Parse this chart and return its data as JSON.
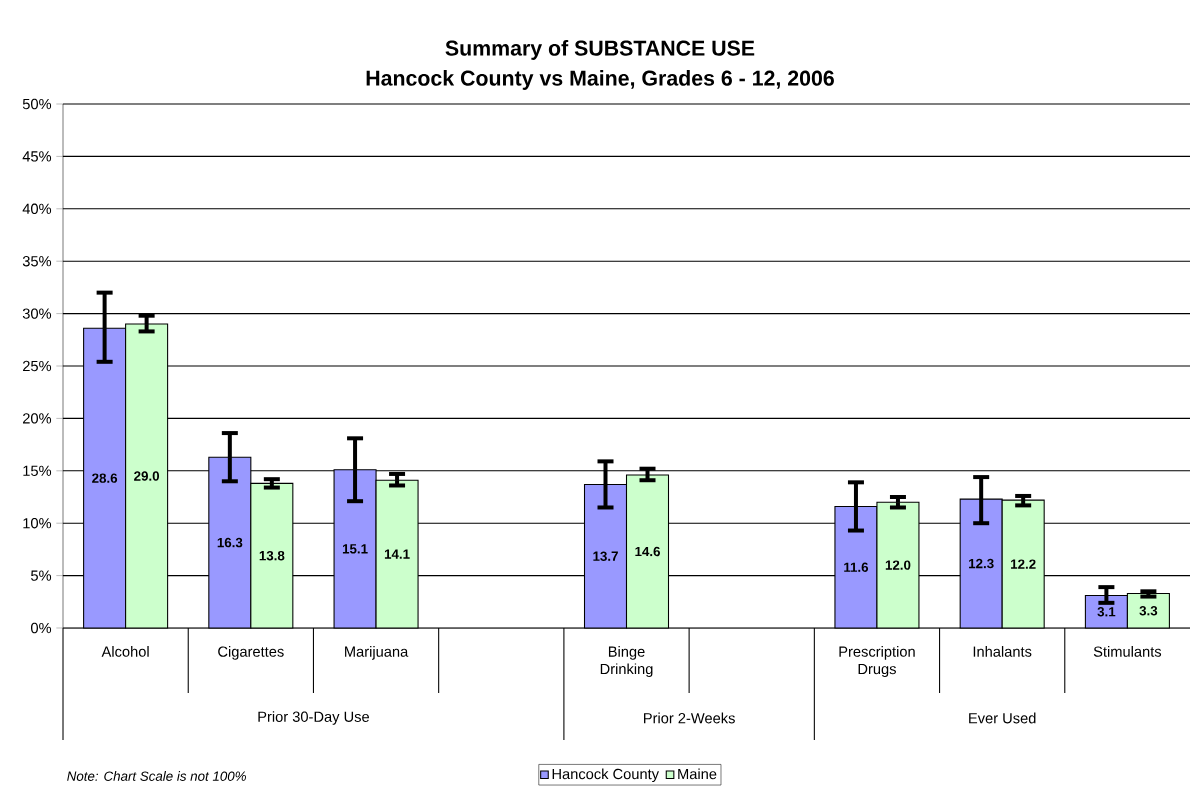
{
  "chart_data": {
    "type": "bar",
    "title": "Summary of SUBSTANCE USE",
    "subtitle": "Hancock County vs Maine, Grades 6 - 12, 2006",
    "categories": [
      "Alcohol",
      "Cigarettes",
      "Marijuana",
      null,
      "Binge Drinking",
      null,
      "Prescription Drugs",
      "Inhalants",
      "Stimulants"
    ],
    "series": [
      {
        "name": "Hancock County",
        "color": "#9999ff",
        "values": [
          28.6,
          16.3,
          15.1,
          null,
          13.7,
          null,
          11.6,
          12.3,
          3.1
        ],
        "value_labels": [
          "28.6",
          "16.3",
          "15.1",
          null,
          "13.7",
          null,
          "11.6",
          "12.3",
          "3.1"
        ],
        "errors": [
          [
            25.4,
            32.0
          ],
          [
            14.0,
            18.6
          ],
          [
            12.1,
            18.1
          ],
          null,
          [
            11.5,
            15.9
          ],
          null,
          [
            9.3,
            13.9
          ],
          [
            10.0,
            14.4
          ],
          [
            2.4,
            3.9
          ]
        ]
      },
      {
        "name": "Maine",
        "color": "#ccffcc",
        "values": [
          29.0,
          13.8,
          14.1,
          null,
          14.6,
          null,
          12.0,
          12.2,
          3.3
        ],
        "value_labels": [
          "29.0",
          "13.8",
          "14.1",
          null,
          "14.6",
          null,
          "12.0",
          "12.2",
          "3.3"
        ],
        "errors": [
          [
            28.3,
            29.8
          ],
          [
            13.4,
            14.2
          ],
          [
            13.6,
            14.7
          ],
          null,
          [
            14.1,
            15.2
          ],
          null,
          [
            11.5,
            12.5
          ],
          [
            11.7,
            12.6
          ],
          [
            3.0,
            3.5
          ]
        ]
      }
    ],
    "ylim": [
      0,
      50
    ],
    "yticks": [
      {
        "value": 0,
        "label": "0%"
      },
      {
        "value": 5,
        "label": "5%"
      },
      {
        "value": 10,
        "label": "10%"
      },
      {
        "value": 15,
        "label": "15%"
      },
      {
        "value": 20,
        "label": "20%"
      },
      {
        "value": 25,
        "label": "25%"
      },
      {
        "value": 30,
        "label": "30%"
      },
      {
        "value": 35,
        "label": "35%"
      },
      {
        "value": 40,
        "label": "40%"
      },
      {
        "value": 45,
        "label": "45%"
      },
      {
        "value": 50,
        "label": "50%"
      }
    ],
    "grid": "y",
    "legend": "bottom",
    "annotations": [
      "Prior 30-Day Use",
      "Prior 2-Weeks",
      "Ever Used",
      "Note: Chart Scale is not 100%"
    ]
  }
}
